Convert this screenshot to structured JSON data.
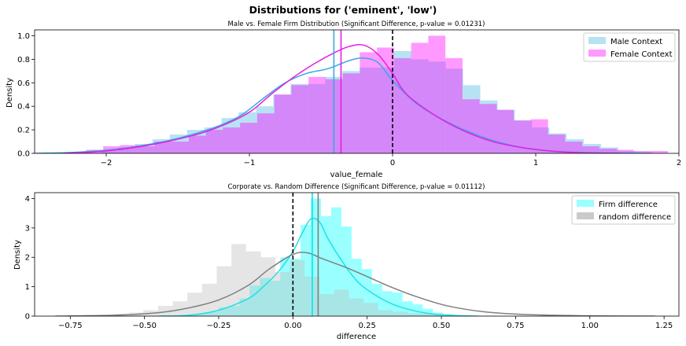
{
  "suptitle": "Distributions for ('eminent', 'low')",
  "chart_data": [
    {
      "type": "histogram+kde",
      "title": "Male vs. Female Firm Distribution (Significant Difference, p-value = 0.01231)",
      "xlabel": "value_female",
      "ylabel": "Density",
      "xlim": [
        -2.5,
        2.0
      ],
      "ylim": [
        0,
        1.05
      ],
      "xticks": [
        "−2",
        "−1",
        "0",
        "1",
        "2"
      ],
      "xtick_values": [
        -2,
        -1,
        0,
        1,
        2
      ],
      "yticks": [
        "0.0",
        "0.2",
        "0.4",
        "0.6",
        "0.8",
        "1.0"
      ],
      "ytick_values": [
        0,
        0.2,
        0.4,
        0.6,
        0.8,
        1.0
      ],
      "legend_position": "top-right",
      "vlines": [
        {
          "x": -0.41,
          "color": "#3aa8e0",
          "style": "solid"
        },
        {
          "x": -0.36,
          "color": "#e51ee5",
          "style": "solid"
        },
        {
          "x": 0.0,
          "color": "#000000",
          "style": "dashed"
        }
      ],
      "series": [
        {
          "name": "Male Context",
          "color": "#87ceeb",
          "line_color": "#3aa8e0",
          "bins": {
            "start": -2.52,
            "width": 0.1205,
            "heights": [
              0,
              0,
              0,
              0,
              0.02,
              0.05,
              0.08,
              0.12,
              0.16,
              0.2,
              0.22,
              0.3,
              0.35,
              0.4,
              0.5,
              0.59,
              0.59,
              0.65,
              0.7,
              0.73,
              0.73,
              0.87,
              0.8,
              0.78,
              0.72,
              0.58,
              0.45,
              0.37,
              0.28,
              0.22,
              0.17,
              0.12,
              0.08,
              0.05,
              0.02,
              0.01,
              0,
              0
            ]
          },
          "kde": {
            "x": [
              -2.5,
              -2.2,
              -1.9,
              -1.6,
              -1.4,
              -1.2,
              -1.05,
              -0.9,
              -0.75,
              -0.6,
              -0.45,
              -0.3,
              -0.2,
              -0.1,
              0.0,
              0.15,
              0.3,
              0.5,
              0.7,
              0.9,
              1.1,
              1.4,
              1.8
            ],
            "y": [
              0.0,
              0.01,
              0.04,
              0.1,
              0.16,
              0.24,
              0.33,
              0.47,
              0.6,
              0.68,
              0.72,
              0.79,
              0.81,
              0.77,
              0.62,
              0.44,
              0.32,
              0.2,
              0.11,
              0.05,
              0.02,
              0.005,
              0.0
            ]
          }
        },
        {
          "name": "Female Context",
          "color": "#ff00ff",
          "line_color": "#e51ee5",
          "bins": {
            "start": -2.26,
            "width": 0.1195,
            "heights": [
              0.01,
              0.03,
              0.06,
              0.07,
              0.06,
              0.1,
              0.1,
              0.15,
              0.2,
              0.22,
              0.26,
              0.34,
              0.5,
              0.58,
              0.65,
              0.63,
              0.68,
              0.86,
              0.9,
              0.81,
              0.94,
              1.0,
              0.81,
              0.46,
              0.42,
              0.37,
              0.28,
              0.29,
              0.16,
              0.1,
              0.06,
              0.04,
              0.03,
              0.02,
              0.02
            ]
          },
          "kde": {
            "x": [
              -2.3,
              -2.0,
              -1.7,
              -1.4,
              -1.2,
              -1.0,
              -0.85,
              -0.7,
              -0.55,
              -0.4,
              -0.3,
              -0.2,
              -0.1,
              0.0,
              0.1,
              0.3,
              0.5,
              0.7,
              0.9,
              1.1,
              1.3,
              1.6
            ],
            "y": [
              0.0,
              0.02,
              0.07,
              0.15,
              0.23,
              0.35,
              0.5,
              0.64,
              0.76,
              0.86,
              0.91,
              0.92,
              0.84,
              0.68,
              0.5,
              0.32,
              0.19,
              0.1,
              0.05,
              0.02,
              0.005,
              0.0
            ]
          }
        }
      ]
    },
    {
      "type": "histogram+kde",
      "title": "Corporate vs. Random Difference (Significant Difference, p-value = 0.01112)",
      "xlabel": "difference",
      "ylabel": "Density",
      "xlim": [
        -0.87,
        1.3
      ],
      "ylim": [
        0,
        4.2
      ],
      "xticks": [
        "−0.75",
        "−0.50",
        "−0.25",
        "0.00",
        "0.25",
        "0.50",
        "0.75",
        "1.00",
        "1.25"
      ],
      "xtick_values": [
        -0.75,
        -0.5,
        -0.25,
        0,
        0.25,
        0.5,
        0.75,
        1.0,
        1.25
      ],
      "yticks": [
        "0",
        "1",
        "2",
        "3",
        "4"
      ],
      "ytick_values": [
        0,
        1,
        2,
        3,
        4
      ],
      "legend_position": "top-right",
      "vlines": [
        {
          "x": 0.065,
          "color": "#00e5ee",
          "style": "solid"
        },
        {
          "x": 0.085,
          "color": "#808080",
          "style": "solid"
        },
        {
          "x": 0.0,
          "color": "#000000",
          "style": "dashed"
        }
      ],
      "series": [
        {
          "name": "Firm difference",
          "color": "#00ffff",
          "line_color": "#1ee0e8",
          "bins": {
            "start": -0.42,
            "width": 0.0343,
            "heights": [
              0.02,
              0.03,
              0.06,
              0.1,
              0.15,
              0.3,
              0.35,
              0.6,
              1.05,
              1.3,
              1.2,
              2.0,
              1.95,
              3.1,
              4.0,
              3.4,
              3.7,
              3.05,
              1.95,
              1.6,
              1.1,
              0.85,
              0.8,
              0.5,
              0.4,
              0.25,
              0.12,
              0.06,
              0.03
            ]
          },
          "kde": {
            "x": [
              -0.45,
              -0.35,
              -0.25,
              -0.15,
              -0.1,
              -0.05,
              0.0,
              0.03,
              0.06,
              0.09,
              0.12,
              0.17,
              0.22,
              0.28,
              0.35,
              0.45,
              0.55,
              0.62
            ],
            "y": [
              0.0,
              0.03,
              0.2,
              0.6,
              1.0,
              1.5,
              2.2,
              2.8,
              3.3,
              3.2,
              2.6,
              1.8,
              1.15,
              0.7,
              0.35,
              0.1,
              0.02,
              0.0
            ]
          }
        },
        {
          "name": "random difference",
          "color": "#bdbdbd",
          "line_color": "#808080",
          "bins": {
            "start": -0.8,
            "width": 0.0494,
            "heights": [
              0.01,
              0.02,
              0.04,
              0.05,
              0.08,
              0.12,
              0.2,
              0.35,
              0.5,
              0.8,
              1.1,
              1.7,
              2.45,
              2.2,
              2.0,
              1.5,
              1.9,
              1.35,
              0.75,
              0.9,
              0.6,
              0.45,
              0.2,
              0.15,
              0.1,
              0.08,
              0.06,
              0.04,
              0.03,
              0.02,
              0.01,
              0.01,
              0.01,
              0.01,
              0.01,
              0.01,
              0.005,
              0.005,
              0.005,
              0.005,
              0.005
            ]
          },
          "kde": {
            "x": [
              -0.8,
              -0.6,
              -0.45,
              -0.35,
              -0.25,
              -0.15,
              -0.08,
              0.0,
              0.05,
              0.1,
              0.18,
              0.26,
              0.34,
              0.42,
              0.52,
              0.65,
              0.8,
              1.0,
              1.22
            ],
            "y": [
              0.0,
              0.03,
              0.12,
              0.28,
              0.55,
              1.05,
              1.6,
              2.1,
              2.15,
              1.95,
              1.65,
              1.3,
              0.95,
              0.65,
              0.35,
              0.14,
              0.05,
              0.01,
              0.0
            ]
          }
        }
      ]
    }
  ]
}
